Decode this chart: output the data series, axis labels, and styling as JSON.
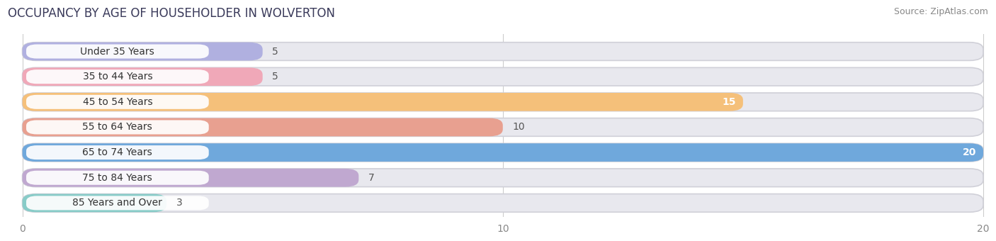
{
  "title": "OCCUPANCY BY AGE OF HOUSEHOLDER IN WOLVERTON",
  "source": "Source: ZipAtlas.com",
  "categories": [
    "Under 35 Years",
    "35 to 44 Years",
    "45 to 54 Years",
    "55 to 64 Years",
    "65 to 74 Years",
    "75 to 84 Years",
    "85 Years and Over"
  ],
  "values": [
    5,
    5,
    15,
    10,
    20,
    7,
    3
  ],
  "bar_colors": [
    "#b0b0e0",
    "#f0a8b8",
    "#f5c07a",
    "#e8a090",
    "#6fa8dc",
    "#c0a8d0",
    "#88ccc8"
  ],
  "bar_bg_color": "#e8e8ee",
  "label_bubble_color": "#ffffff",
  "xlim_min": 0,
  "xlim_max": 20,
  "xticks": [
    0,
    10,
    20
  ],
  "title_fontsize": 12,
  "source_fontsize": 9,
  "label_fontsize": 10,
  "value_fontsize": 10,
  "fig_bg_color": "#ffffff",
  "grid_color": "#cccccc",
  "tick_label_color": "#888888",
  "title_color": "#3a3a5a",
  "source_color": "#888888",
  "text_color": "#333333",
  "value_color_inside": "#ffffff",
  "value_color_outside": "#555555",
  "inside_threshold": 12
}
